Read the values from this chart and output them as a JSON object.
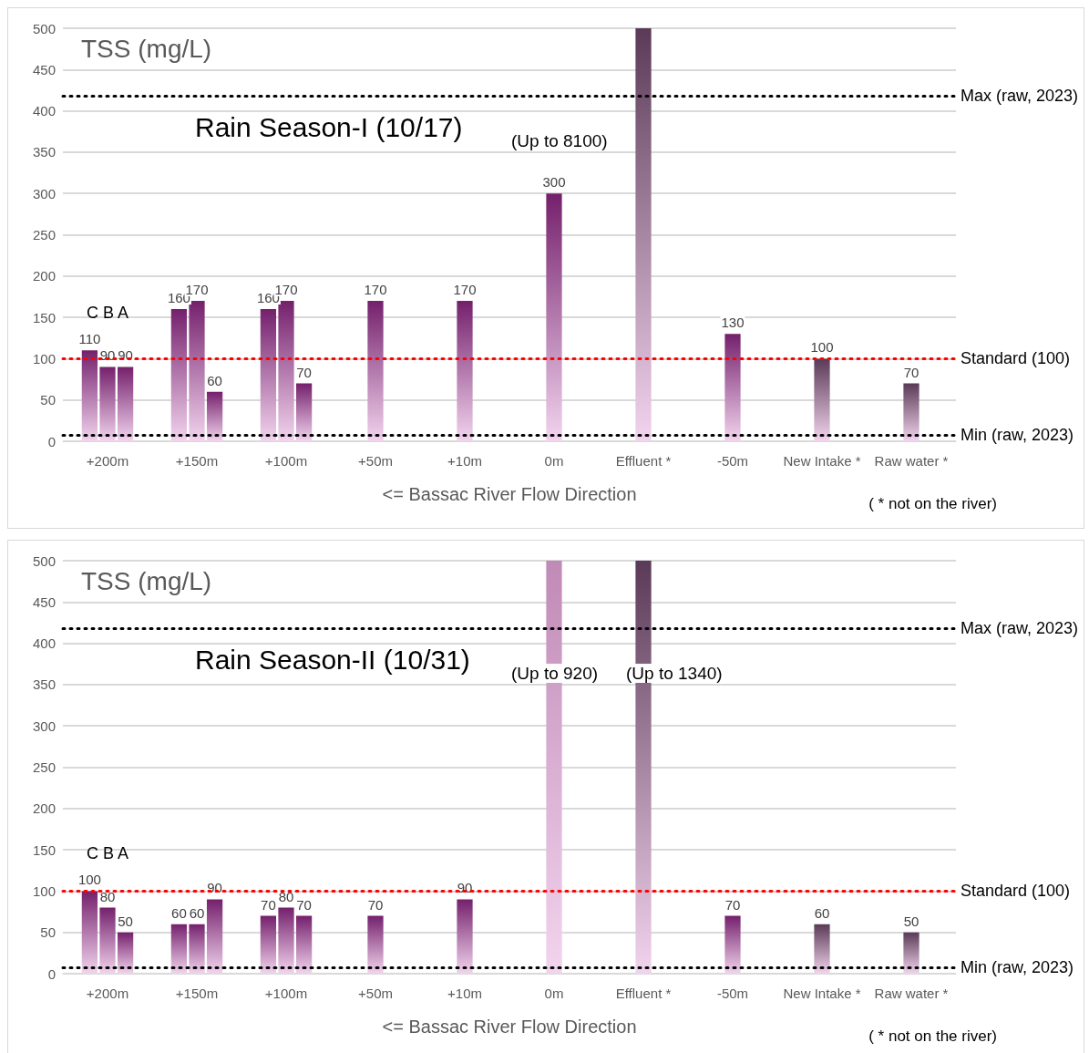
{
  "chart_data": [
    {
      "type": "bar",
      "title": "Rain Season-I (10/17)",
      "ylabel": "TSS (mg/L)",
      "xlabel": "<= Bassac River Flow Direction",
      "categories": [
        "+200m",
        "+150m",
        "+100m",
        "+50m",
        "+10m",
        "0m",
        "Effluent *",
        "-50m",
        "New Intake *",
        "Raw water *"
      ],
      "ylim": [
        0,
        500
      ],
      "yticks": [
        0,
        50,
        100,
        150,
        200,
        250,
        300,
        350,
        400,
        450,
        500
      ],
      "grid": "y",
      "series": [
        {
          "color": "#74206c",
          "values": [
            110,
            160,
            160,
            null,
            null,
            null,
            null,
            null,
            null,
            null
          ],
          "value_labels": [
            "110",
            "160",
            "160",
            null,
            null,
            null,
            null,
            null,
            null,
            null
          ]
        },
        {
          "colors": [
            "#74206c",
            "#74206c",
            "#74206c",
            "#74206c",
            "#74206c",
            "#74206c",
            "#5a3a56",
            "#74206c",
            "#5a3a56",
            "#5a3a56"
          ],
          "values": [
            90,
            170,
            170,
            170,
            170,
            300,
            500,
            130,
            100,
            70
          ],
          "value_labels": [
            "90",
            "170",
            "170",
            "170",
            "170",
            "300",
            null,
            "130",
            "100",
            "70"
          ]
        },
        {
          "color": "#74206c",
          "values": [
            90,
            60,
            70,
            null,
            null,
            null,
            null,
            null,
            null,
            null
          ],
          "value_labels": [
            "90",
            "60",
            "70",
            null,
            null,
            null,
            null,
            null,
            null,
            null
          ]
        }
      ],
      "ref_lines": [
        {
          "axis": "y",
          "value": 418,
          "label": "Max (raw, 2023)",
          "color": "#000000",
          "line_style": "dotted"
        },
        {
          "axis": "y",
          "value": 100,
          "label": "Standard (100)",
          "color": "#ff0000",
          "line_style": "dotted"
        },
        {
          "axis": "y",
          "value": 8,
          "label": "Min (raw, 2023)",
          "color": "#000000",
          "line_style": "dotted"
        }
      ],
      "annotations": [
        "C B A",
        "(Up to 8100)",
        "( * not on the river)"
      ]
    },
    {
      "type": "bar",
      "title": "Rain Season-II (10/31)",
      "ylabel": "TSS (mg/L)",
      "xlabel": "<= Bassac River Flow Direction",
      "categories": [
        "+200m",
        "+150m",
        "+100m",
        "+50m",
        "+10m",
        "0m",
        "Effluent *",
        "-50m",
        "New Intake *",
        "Raw water *"
      ],
      "ylim": [
        0,
        500
      ],
      "yticks": [
        0,
        50,
        100,
        150,
        200,
        250,
        300,
        350,
        400,
        450,
        500
      ],
      "grid": "y",
      "series": [
        {
          "color": "#74206c",
          "values": [
            100,
            60,
            70,
            null,
            null,
            null,
            null,
            null,
            null,
            null
          ],
          "value_labels": [
            "100",
            "60",
            "70",
            null,
            null,
            null,
            null,
            null,
            null,
            null
          ]
        },
        {
          "colors": [
            "#74206c",
            "#74206c",
            "#74206c",
            "#74206c",
            "#74206c",
            "#c08ab6",
            "#5a3a56",
            "#74206c",
            "#5a3a56",
            "#5a3a56"
          ],
          "values": [
            80,
            60,
            80,
            70,
            90,
            500,
            500,
            70,
            60,
            50
          ],
          "value_labels": [
            "80",
            "60",
            "80",
            "70",
            "90",
            null,
            null,
            "70",
            "60",
            "50"
          ]
        },
        {
          "color": "#74206c",
          "values": [
            50,
            90,
            70,
            null,
            null,
            null,
            null,
            null,
            null,
            null
          ],
          "value_labels": [
            "50",
            "90",
            "70",
            null,
            null,
            null,
            null,
            null,
            null,
            null
          ]
        }
      ],
      "ref_lines": [
        {
          "axis": "y",
          "value": 418,
          "label": "Max (raw, 2023)",
          "color": "#000000",
          "line_style": "dotted"
        },
        {
          "axis": "y",
          "value": 100,
          "label": "Standard (100)",
          "color": "#ff0000",
          "line_style": "dotted"
        },
        {
          "axis": "y",
          "value": 8,
          "label": "Min (raw, 2023)",
          "color": "#000000",
          "line_style": "dotted"
        }
      ],
      "annotations": [
        "C B A",
        "(Up to 920)",
        "(Up to 1340)",
        "( * not on the river)"
      ]
    }
  ]
}
